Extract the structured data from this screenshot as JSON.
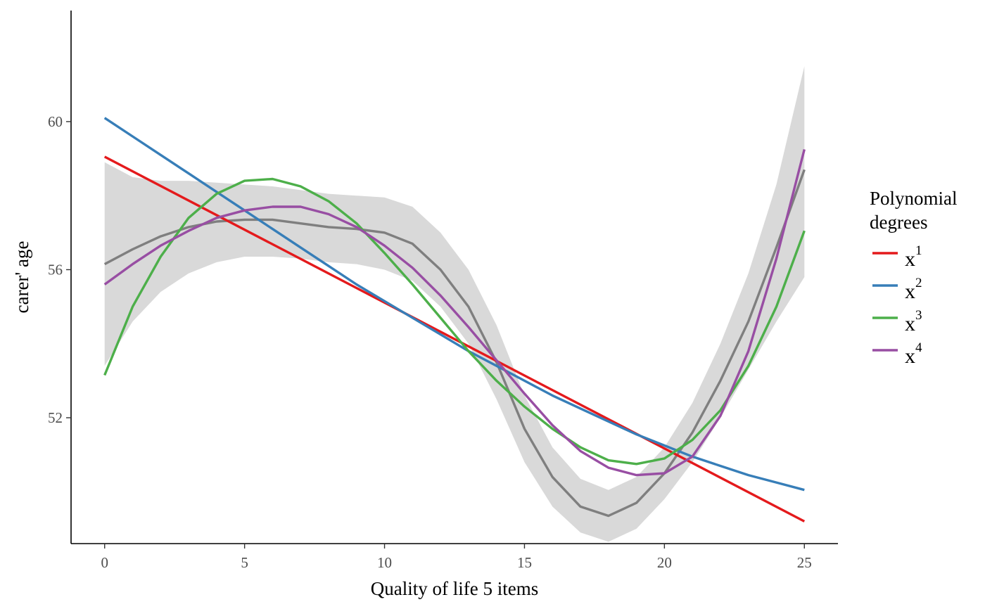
{
  "chart_data": {
    "type": "line",
    "title": "",
    "xlabel": "Quality of life 5 items",
    "ylabel": "carer' age",
    "xlim": [
      -1.2,
      26.2
    ],
    "ylim": [
      48.6,
      63.0
    ],
    "x_ticks": [
      0,
      5,
      10,
      15,
      20,
      25
    ],
    "x_tick_labels": [
      "0",
      "5",
      "10",
      "15",
      "20",
      "25"
    ],
    "y_ticks": [
      52,
      56,
      60
    ],
    "y_tick_labels": [
      "52",
      "56",
      "60"
    ],
    "grid": false,
    "legend": {
      "title_lines": [
        "Polynomial",
        "degrees"
      ],
      "placement": "right",
      "entries": [
        {
          "base": "x",
          "sup": "1",
          "color": "#E41A1C"
        },
        {
          "base": "x",
          "sup": "2",
          "color": "#377EB8"
        },
        {
          "base": "x",
          "sup": "3",
          "color": "#4DAF4A"
        },
        {
          "base": "x",
          "sup": "4",
          "color": "#984EA3"
        }
      ]
    },
    "smooth": {
      "color": "#7f7f7f",
      "band_color": "#d9d9d9",
      "x": [
        0,
        1,
        2,
        3,
        4,
        5,
        6,
        7,
        8,
        9,
        10,
        11,
        12,
        13,
        14,
        15,
        16,
        17,
        18,
        19,
        20,
        21,
        22,
        23,
        24,
        25
      ],
      "y": [
        56.15,
        56.55,
        56.9,
        57.15,
        57.3,
        57.35,
        57.35,
        57.25,
        57.15,
        57.1,
        57.0,
        56.7,
        56.0,
        55.0,
        53.5,
        51.7,
        50.4,
        49.6,
        49.35,
        49.7,
        50.5,
        51.6,
        53.0,
        54.6,
        56.6,
        58.7
      ],
      "lower": [
        53.4,
        54.6,
        55.4,
        55.9,
        56.2,
        56.35,
        56.35,
        56.3,
        56.2,
        56.15,
        56.0,
        55.7,
        55.0,
        54.0,
        52.5,
        50.8,
        49.6,
        48.9,
        48.65,
        49.0,
        49.8,
        50.8,
        52.0,
        53.3,
        54.6,
        55.8
      ],
      "upper": [
        58.9,
        58.5,
        58.4,
        58.4,
        58.35,
        58.3,
        58.25,
        58.15,
        58.05,
        58.0,
        57.95,
        57.7,
        57.0,
        56.0,
        54.5,
        52.6,
        51.2,
        50.35,
        50.05,
        50.4,
        51.2,
        52.4,
        54.0,
        55.9,
        58.3,
        61.5
      ]
    },
    "series": [
      {
        "name": "x1",
        "color": "#E41A1C",
        "x": [
          0,
          25
        ],
        "y": [
          59.05,
          49.2
        ]
      },
      {
        "name": "x2",
        "color": "#377EB8",
        "x": [
          0,
          1,
          2,
          3,
          4,
          5,
          6,
          7,
          8,
          9,
          10,
          11,
          12,
          13,
          14,
          15,
          16,
          17,
          18,
          19,
          20,
          21,
          22,
          23,
          24,
          25
        ],
        "y": [
          60.1,
          59.6,
          59.1,
          58.6,
          58.1,
          57.6,
          57.1,
          56.6,
          56.1,
          55.6,
          55.15,
          54.7,
          54.25,
          53.8,
          53.4,
          53.0,
          52.6,
          52.25,
          51.9,
          51.55,
          51.25,
          50.95,
          50.7,
          50.45,
          50.25,
          50.05
        ]
      },
      {
        "name": "x3",
        "color": "#4DAF4A",
        "x": [
          0,
          1,
          2,
          3,
          4,
          5,
          6,
          7,
          8,
          9,
          10,
          11,
          12,
          13,
          14,
          15,
          16,
          17,
          18,
          19,
          20,
          21,
          22,
          23,
          24,
          25
        ],
        "y": [
          53.15,
          55.0,
          56.35,
          57.4,
          58.05,
          58.4,
          58.45,
          58.25,
          57.85,
          57.25,
          56.45,
          55.6,
          54.7,
          53.8,
          53.0,
          52.3,
          51.7,
          51.2,
          50.85,
          50.75,
          50.9,
          51.4,
          52.2,
          53.4,
          55.0,
          57.05
        ]
      },
      {
        "name": "x4",
        "color": "#984EA3",
        "x": [
          0,
          1,
          2,
          3,
          4,
          5,
          6,
          7,
          8,
          9,
          10,
          11,
          12,
          13,
          14,
          15,
          16,
          17,
          18,
          19,
          20,
          21,
          22,
          23,
          24,
          25
        ],
        "y": [
          55.6,
          56.15,
          56.65,
          57.05,
          57.4,
          57.6,
          57.7,
          57.7,
          57.5,
          57.15,
          56.65,
          56.05,
          55.3,
          54.45,
          53.55,
          52.65,
          51.8,
          51.1,
          50.65,
          50.45,
          50.5,
          50.95,
          52.05,
          53.8,
          56.3,
          59.25
        ]
      }
    ]
  }
}
